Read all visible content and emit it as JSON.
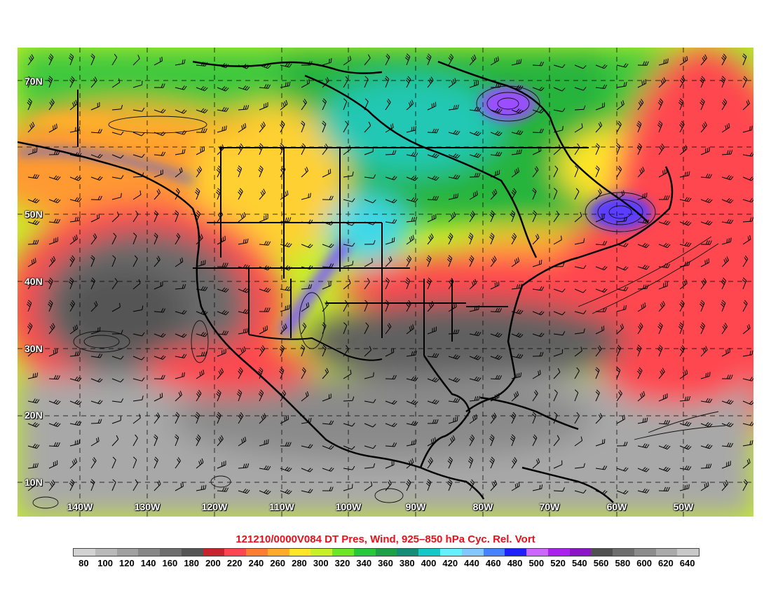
{
  "title": "121210/0000V084 DT Pres, Wind, 925–850 hPa Cyc. Rel. Vort",
  "latitude_labels": [
    "70N",
    "50N",
    "40N",
    "30N",
    "20N",
    "10N"
  ],
  "longitude_labels": [
    "140W",
    "130W",
    "120W",
    "110W",
    "100W",
    "90W",
    "80W",
    "70W",
    "60W",
    "50W"
  ],
  "colorbar": {
    "labels": [
      "80",
      "100",
      "120",
      "140",
      "160",
      "180",
      "200",
      "220",
      "240",
      "260",
      "280",
      "300",
      "320",
      "340",
      "360",
      "380",
      "400",
      "420",
      "440",
      "460",
      "480",
      "500",
      "520",
      "540",
      "560",
      "580",
      "600",
      "620",
      "640"
    ],
    "colors": [
      "#d2d2d2",
      "#b9b9b9",
      "#a0a0a0",
      "#878787",
      "#6e6e6e",
      "#555555",
      "#c8232d",
      "#ff4650",
      "#ff7d32",
      "#ffaa28",
      "#ffe628",
      "#c8f028",
      "#6ee628",
      "#28c83c",
      "#1ea046",
      "#148c78",
      "#14c8c8",
      "#64f0ff",
      "#82c8ff",
      "#4682ff",
      "#1e1eff",
      "#cc66ff",
      "#aa22ee",
      "#8c14c8",
      "#505050",
      "#6e6e6e",
      "#8c8c8c",
      "#aaaaaa",
      "#c8c8c8"
    ]
  }
}
